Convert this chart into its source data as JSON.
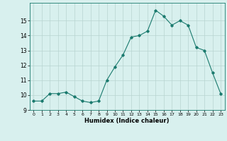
{
  "x": [
    0,
    1,
    2,
    3,
    4,
    5,
    6,
    7,
    8,
    9,
    10,
    11,
    12,
    13,
    14,
    15,
    16,
    17,
    18,
    19,
    20,
    21,
    22,
    23
  ],
  "y": [
    9.6,
    9.6,
    10.1,
    10.1,
    10.2,
    9.9,
    9.6,
    9.5,
    9.6,
    11.0,
    11.9,
    12.7,
    13.9,
    14.0,
    14.3,
    15.7,
    15.3,
    14.7,
    15.0,
    14.7,
    13.2,
    13.0,
    11.5,
    10.1
  ],
  "line_color": "#1a7a6e",
  "marker": "D",
  "markersize": 1.8,
  "linewidth": 0.8,
  "xlabel": "Humidex (Indice chaleur)",
  "background_color": "#d8f0ee",
  "grid_color": "#b8d4d0",
  "ylim": [
    9.0,
    16.2
  ],
  "xlim": [
    -0.5,
    23.5
  ],
  "yticks": [
    9,
    10,
    11,
    12,
    13,
    14,
    15
  ],
  "xticks": [
    0,
    1,
    2,
    3,
    4,
    5,
    6,
    7,
    8,
    9,
    10,
    11,
    12,
    13,
    14,
    15,
    16,
    17,
    18,
    19,
    20,
    21,
    22,
    23
  ]
}
